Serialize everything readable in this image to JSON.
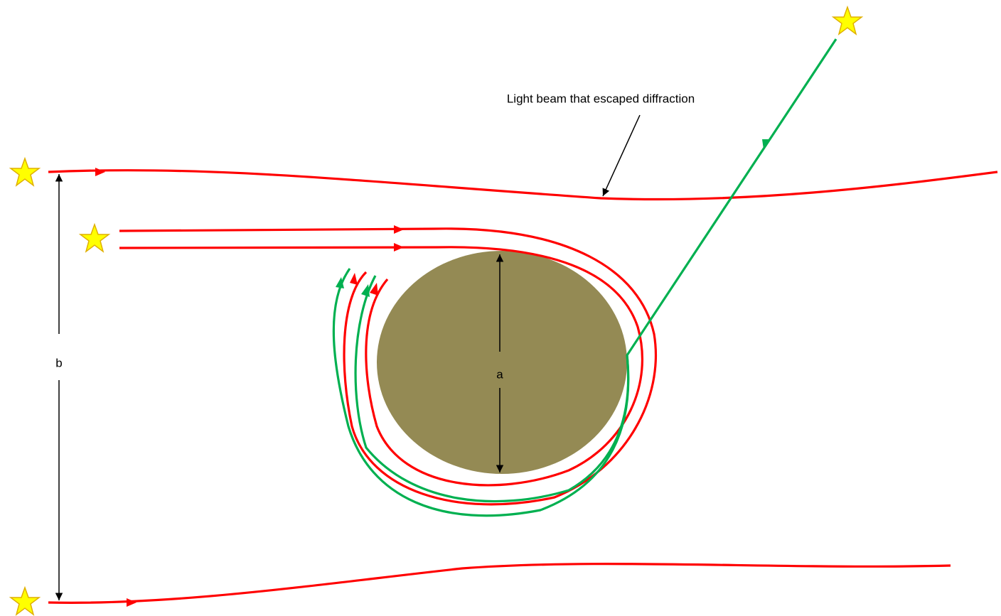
{
  "annotation": "Light beam that escaped diffraction",
  "dimensions": {
    "inner": "a",
    "outer": "b"
  }
}
